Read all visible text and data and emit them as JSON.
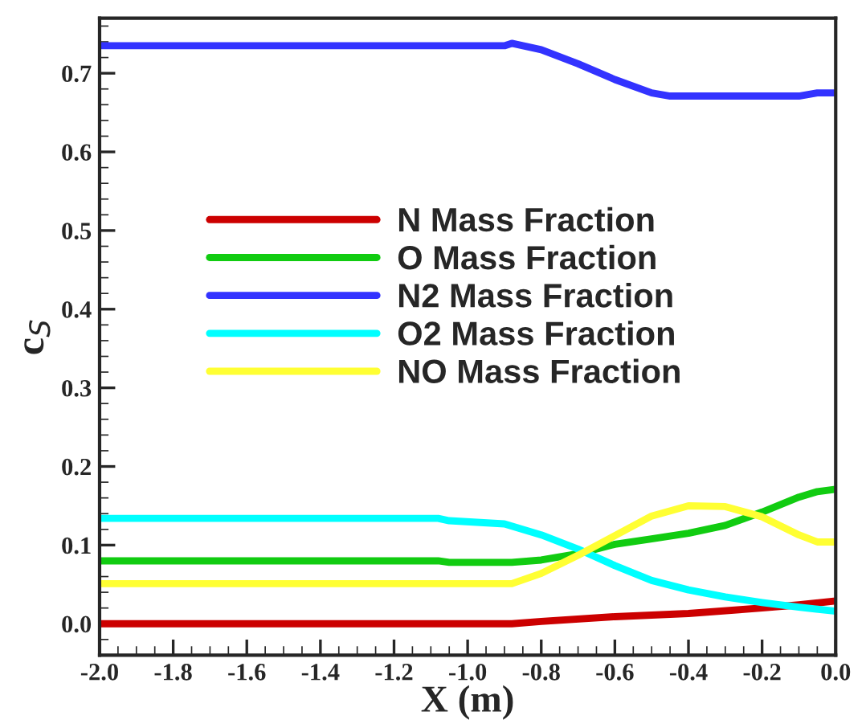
{
  "chart_data": {
    "type": "line",
    "xlabel": "X (m)",
    "ylabel": "c$_{S}$",
    "xlim": [
      -2.0,
      0.0
    ],
    "ylim": [
      -0.04,
      0.77
    ],
    "xticks": [
      {
        "value": -2.0,
        "label": "-2.0"
      },
      {
        "value": -1.8,
        "label": "-1.8"
      },
      {
        "value": -1.6,
        "label": "-1.6"
      },
      {
        "value": -1.4,
        "label": "-1.4"
      },
      {
        "value": -1.2,
        "label": "-1.2"
      },
      {
        "value": -1.0,
        "label": "-1.0"
      },
      {
        "value": -0.8,
        "label": "-0.8"
      },
      {
        "value": -0.6,
        "label": "-0.6"
      },
      {
        "value": -0.4,
        "label": "-0.4"
      },
      {
        "value": -0.2,
        "label": "-0.2"
      },
      {
        "value": 0.0,
        "label": "0.0"
      }
    ],
    "yticks": [
      {
        "value": 0.0,
        "label": "0.0"
      },
      0.1,
      0.2,
      0.3,
      0.4,
      0.5,
      0.6,
      0.7
    ],
    "grid": false,
    "legend": "center",
    "line_style": "solid",
    "marker": "none",
    "series": [
      {
        "name": "N Mass Fraction",
        "color": "#cc0000",
        "x": [
          -2.0,
          -1.5,
          -1.0,
          -0.88,
          -0.8,
          -0.6,
          -0.4,
          -0.2,
          -0.1,
          0.0
        ],
        "values": [
          0.0,
          0.0,
          0.0,
          0.0,
          0.003,
          0.009,
          0.013,
          0.02,
          0.024,
          0.029
        ]
      },
      {
        "name": "O Mass Fraction",
        "color": "#11cc11",
        "x": [
          -2.0,
          -1.5,
          -1.08,
          -1.05,
          -0.88,
          -0.8,
          -0.7,
          -0.6,
          -0.5,
          -0.4,
          -0.3,
          -0.2,
          -0.1,
          -0.05,
          0.0
        ],
        "values": [
          0.08,
          0.08,
          0.08,
          0.078,
          0.078,
          0.081,
          0.089,
          0.101,
          0.108,
          0.115,
          0.125,
          0.142,
          0.161,
          0.168,
          0.171
        ]
      },
      {
        "name": "N2 Mass Fraction",
        "color": "#3333ff",
        "x": [
          -2.0,
          -1.5,
          -0.9,
          -0.88,
          -0.8,
          -0.7,
          -0.6,
          -0.5,
          -0.45,
          -0.1,
          -0.05,
          0.0
        ],
        "values": [
          0.735,
          0.735,
          0.735,
          0.738,
          0.73,
          0.712,
          0.692,
          0.675,
          0.671,
          0.671,
          0.675,
          0.675
        ]
      },
      {
        "name": "O2 Mass Fraction",
        "color": "#00ffff",
        "x": [
          -2.0,
          -1.5,
          -1.08,
          -1.05,
          -0.9,
          -0.8,
          -0.7,
          -0.6,
          -0.5,
          -0.4,
          -0.3,
          -0.2,
          -0.1,
          0.0
        ],
        "values": [
          0.134,
          0.134,
          0.134,
          0.131,
          0.127,
          0.113,
          0.095,
          0.074,
          0.055,
          0.043,
          0.034,
          0.027,
          0.021,
          0.016
        ]
      },
      {
        "name": "NO Mass Fraction",
        "color": "#ffff33",
        "x": [
          -2.0,
          -1.5,
          -0.88,
          -0.8,
          -0.7,
          -0.6,
          -0.5,
          -0.4,
          -0.3,
          -0.2,
          -0.1,
          -0.05,
          0.0
        ],
        "values": [
          0.051,
          0.051,
          0.051,
          0.064,
          0.087,
          0.112,
          0.137,
          0.15,
          0.149,
          0.136,
          0.113,
          0.104,
          0.104
        ]
      }
    ]
  }
}
